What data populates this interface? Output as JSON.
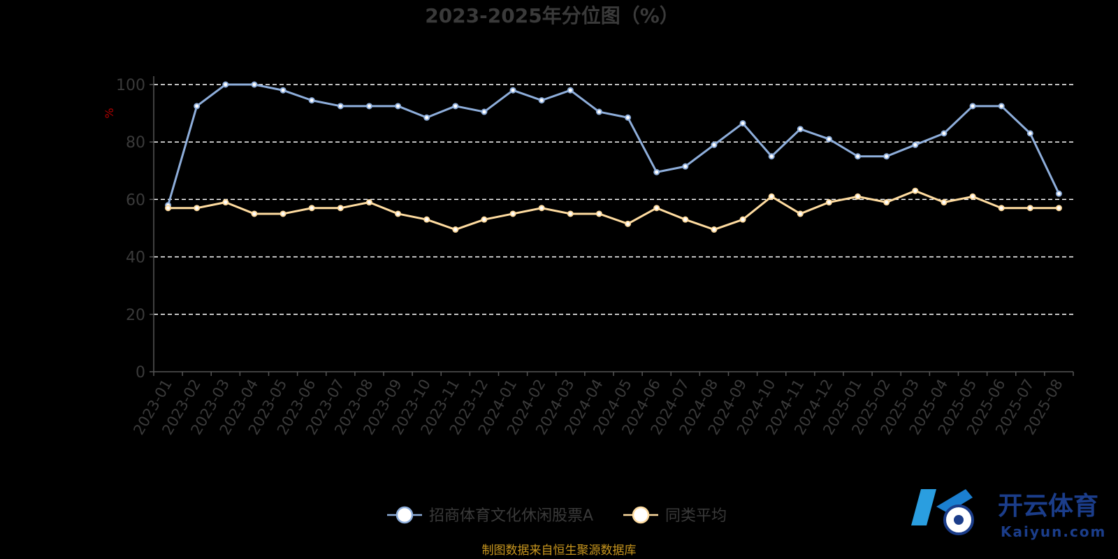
{
  "chart_data": {
    "type": "line",
    "title": "2023-2025年分位图（%）",
    "ylabel": "%",
    "ylim": [
      0,
      100
    ],
    "yticks": [
      0,
      20,
      40,
      60,
      80,
      100
    ],
    "grid": true,
    "legend_position": "bottom-center",
    "categories": [
      "2023-01",
      "2023-02",
      "2023-03",
      "2023-04",
      "2023-05",
      "2023-06",
      "2023-07",
      "2023-08",
      "2023-09",
      "2023-10",
      "2023-11",
      "2023-12",
      "2024-01",
      "2024-02",
      "2024-03",
      "2024-04",
      "2024-05",
      "2024-06",
      "2024-07",
      "2024-08",
      "2024-09",
      "2024-10",
      "2024-11",
      "2024-12",
      "2025-01",
      "2025-02",
      "2025-03",
      "2025-04",
      "2025-05",
      "2025-06",
      "2025-07",
      "2025-08"
    ],
    "series": [
      {
        "name": "招商体育文化休闲股票A",
        "color": "#8eaedb",
        "values": [
          58,
          92.5,
          100,
          100,
          98,
          94.5,
          92.5,
          92.5,
          92.5,
          88.5,
          92.5,
          90.5,
          98,
          94.5,
          98,
          90.5,
          88.5,
          69.5,
          71.5,
          79,
          86.5,
          75,
          84.5,
          81,
          75,
          75,
          79,
          83,
          92.5,
          92.5,
          83,
          62
        ]
      },
      {
        "name": "同类平均",
        "color": "#ffdca0",
        "values": [
          57,
          57,
          59,
          55,
          55,
          57,
          57,
          59,
          55,
          53,
          49.5,
          53,
          55,
          57,
          55,
          55,
          51.5,
          57,
          53,
          49.5,
          53,
          61,
          55,
          59,
          61,
          59,
          63,
          59,
          61,
          57,
          57,
          57
        ]
      }
    ]
  },
  "source_text": "制图数据来自恒生聚源数据库",
  "watermark": {
    "main": "开云体育",
    "sub": "Kaiyun.com"
  }
}
